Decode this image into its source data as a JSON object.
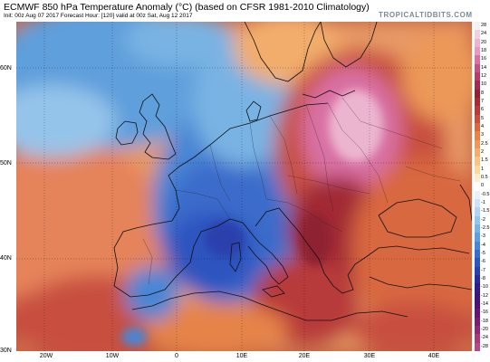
{
  "header": {
    "title": "ECMWF 850 hPa Temperature Anomaly (°C) (based on CFSR 1981-2010 Climatology)",
    "subtitle": "Init: 00z Aug 07 2017   Forecast Hour: [120]   valid at 00z Sat, Aug 12 2017",
    "brand": "TROPICALTIDBITS.COM"
  },
  "map": {
    "region": "Europe and Mediterranean",
    "latitude_labels": [
      "60N",
      "50N",
      "40N",
      "30N"
    ],
    "longitude_labels": [
      "20W",
      "10W",
      "0",
      "10E",
      "20E",
      "30E",
      "40E"
    ],
    "anomaly_pattern": {
      "cold_core": "western/central Europe and western Mediterranean",
      "warm_core": "eastern Europe and Balkans",
      "warm_secondary": "northwest Africa and Iberia"
    }
  },
  "colorbar": {
    "levels": [
      "28",
      "24",
      "20",
      "18",
      "16",
      "14",
      "12",
      "10",
      "8",
      "7",
      "6",
      "5",
      "4",
      "3",
      "2.5",
      "2",
      "1.5",
      "1",
      "0.5",
      "0",
      "-0.5",
      "-1",
      "-1.5",
      "-2",
      "-2.5",
      "-3",
      "-4",
      "-5",
      "-6",
      "-7",
      "-8",
      "-10",
      "-12",
      "-14",
      "-16",
      "-18",
      "-20",
      "-24",
      "-28"
    ],
    "colors": [
      "#f7f0f2",
      "#f0cfe0",
      "#ecb5cf",
      "#e79ac0",
      "#d971a4",
      "#c25483",
      "#b23f6a",
      "#9d2c4f",
      "#8e2232",
      "#a22b35",
      "#b83a3a",
      "#c84f3f",
      "#d8683f",
      "#e58348",
      "#ec9858",
      "#f2ad6c",
      "#f7c483",
      "#fad9a1",
      "#fdeccb",
      "#ffffff",
      "#e7f1fb",
      "#cfe3f6",
      "#b2d4f0",
      "#95c4ea",
      "#79b3e3",
      "#5e9fdc",
      "#4a86d4",
      "#3a6ccb",
      "#2f55bf",
      "#2a40ad",
      "#292c98",
      "#2f1d86",
      "#3a157a",
      "#4c1374",
      "#61176f",
      "#781e6e",
      "#8e2a72",
      "#a33b7c",
      "#b24a86"
    ]
  }
}
